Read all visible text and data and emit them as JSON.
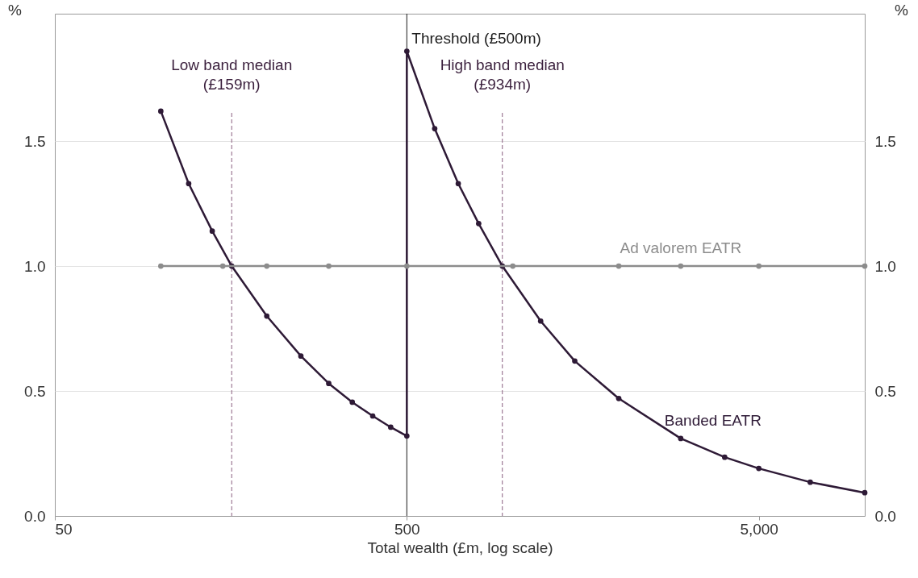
{
  "chart_data": {
    "type": "line",
    "xlabel": "Total wealth (£m, log scale)",
    "ylabel": "%",
    "y2label": "%",
    "log": "x",
    "xlim": [
      50,
      10000
    ],
    "xticks": [
      50,
      500,
      {
        "value": 5000,
        "label": "5,000"
      }
    ],
    "ylim": [
      0,
      2.01
    ],
    "yticks": [
      {
        "value": 0,
        "label": "0.0"
      },
      {
        "value": 0.5,
        "label": "0.5"
      },
      {
        "value": 1,
        "label": "1.0"
      },
      {
        "value": 1.5,
        "label": "1.5"
      }
    ],
    "y2lim": [
      0,
      2.01
    ],
    "y2ticks": [
      {
        "value": 0,
        "label": "0.0"
      },
      {
        "value": 0.5,
        "label": "0.5"
      },
      {
        "value": 1,
        "label": "1.0"
      },
      {
        "value": 1.5,
        "label": "1.5"
      }
    ],
    "grid": "y",
    "legend": false,
    "marker": "circle",
    "line_style": "solid",
    "series": [
      {
        "name": "Banded EATR",
        "color": "#2e1a36",
        "x": [
          100,
          120,
          140,
          159,
          200,
          250,
          300,
          350,
          400,
          450,
          500,
          500,
          600,
          700,
          800,
          934,
          1200,
          1500,
          2000,
          3000,
          4000,
          5000,
          7000,
          10000
        ],
        "values": [
          1.62,
          1.33,
          1.14,
          1.0,
          0.8,
          0.64,
          0.53,
          0.455,
          0.4,
          0.355,
          0.32,
          1.86,
          1.55,
          1.33,
          1.17,
          1.0,
          0.78,
          0.62,
          0.47,
          0.31,
          0.235,
          0.19,
          0.135,
          0.093
        ]
      },
      {
        "name": "Ad valorem EATR",
        "color": "#8c8c8c",
        "x": [
          100,
          150,
          200,
          300,
          500,
          1000,
          2000,
          3000,
          5000,
          10000
        ],
        "values": [
          1,
          1,
          1,
          1,
          1,
          1,
          1,
          1,
          1,
          1
        ]
      }
    ],
    "ref_lines": [
      {
        "axis": "x",
        "value": 159,
        "label": "Low band median\n(£159m)",
        "color": "#8a5f7f",
        "line_style": "dashed"
      },
      {
        "axis": "x",
        "value": 500,
        "label": "Threshold (£500m)",
        "color": "#1a1a1a",
        "line_style": "solid"
      },
      {
        "axis": "x",
        "value": 934,
        "label": "High band median\n(£934m)",
        "color": "#8a5f7f",
        "line_style": "dashed"
      }
    ]
  }
}
